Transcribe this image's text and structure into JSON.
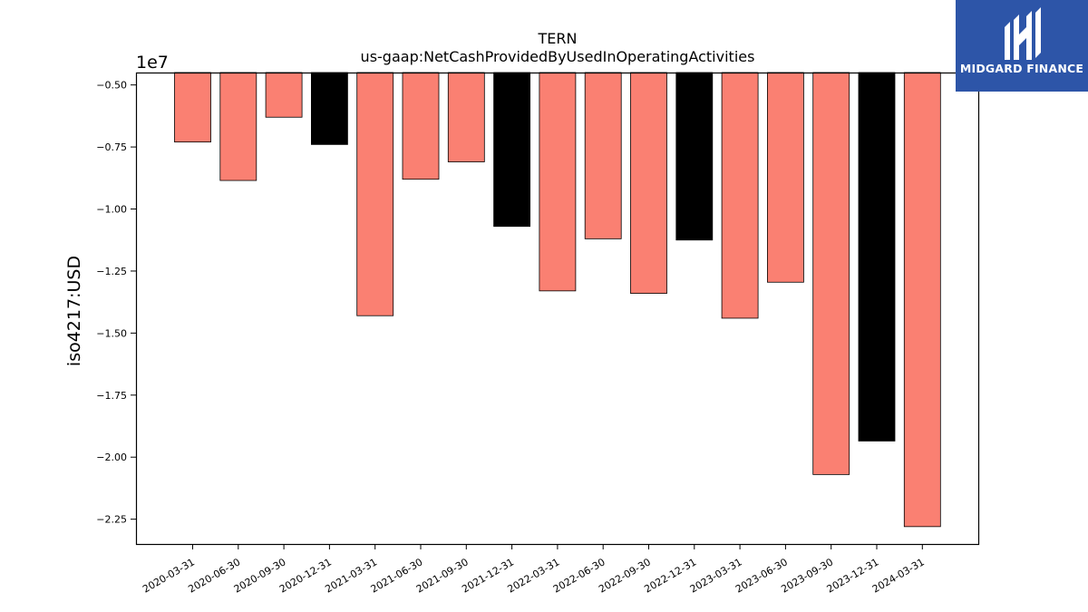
{
  "chart_data": {
    "type": "bar",
    "title": "TERN",
    "subtitle": "us-gaap:NetCashProvidedByUsedInOperatingActivities",
    "ylabel": "iso4217:USD",
    "xlabel": "",
    "offset_label": "1e7",
    "ylim": [
      -23500000,
      -4500000
    ],
    "yticks": [
      -5000000,
      -7500000,
      -10000000,
      -12500000,
      -15000000,
      -17500000,
      -20000000,
      -22500000
    ],
    "ytick_labels": [
      "−0.50",
      "−0.75",
      "−1.00",
      "−1.25",
      "−1.50",
      "−1.75",
      "−2.00",
      "−2.25"
    ],
    "categories": [
      "2020-03-31",
      "2020-06-30",
      "2020-09-30",
      "2020-12-31",
      "2021-03-31",
      "2021-06-30",
      "2021-09-30",
      "2021-12-31",
      "2022-03-31",
      "2022-06-30",
      "2022-09-30",
      "2022-12-31",
      "2023-03-31",
      "2023-06-30",
      "2023-09-30",
      "2023-12-31",
      "2024-03-31"
    ],
    "values": [
      -7300000,
      -8850000,
      -6300000,
      -7400000,
      -14300000,
      -8800000,
      -8100000,
      -10700000,
      -13300000,
      -11200000,
      -13400000,
      -11250000,
      -14400000,
      -12950000,
      -20700000,
      -19350000,
      -22800000
    ],
    "bar_colors": [
      "#fa8072",
      "#fa8072",
      "#fa8072",
      "#000000",
      "#fa8072",
      "#fa8072",
      "#fa8072",
      "#000000",
      "#fa8072",
      "#fa8072",
      "#fa8072",
      "#000000",
      "#fa8072",
      "#fa8072",
      "#fa8072",
      "#000000",
      "#fa8072"
    ],
    "grid": false,
    "legend": "none"
  },
  "logo": {
    "text": "MIDGARD FINANCE",
    "color": "#2d55a8"
  }
}
